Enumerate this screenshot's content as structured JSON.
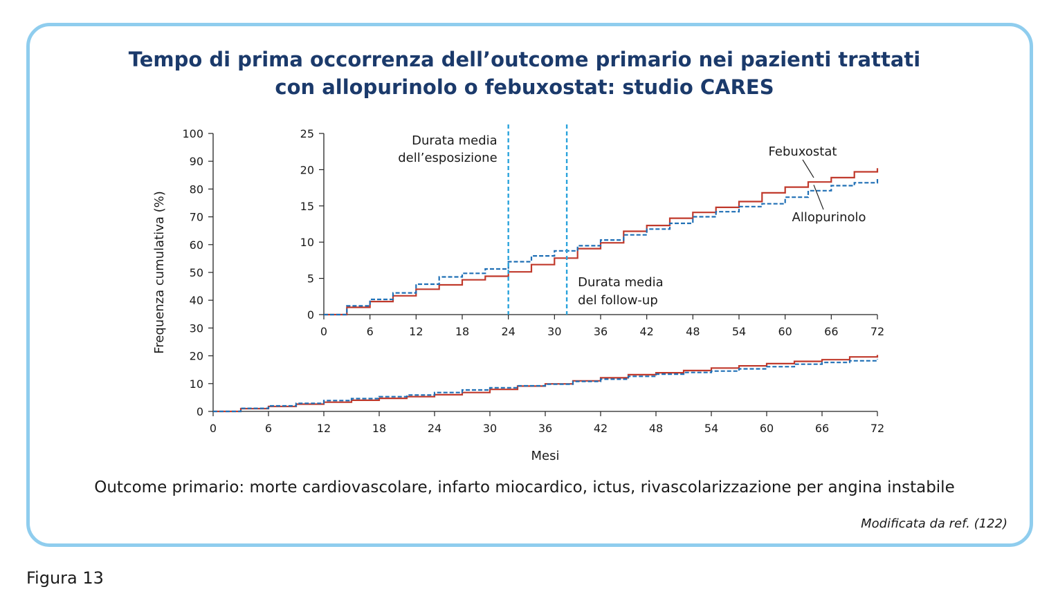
{
  "title_line1": "Tempo di prima occorrenza dell’outcome primario nei pazienti trattati",
  "title_line2": "con allopurinolo o febuxostat: studio CARES",
  "caption": "Outcome primario: morte cardiovascolare, infarto miocardico, ictus, rivascolarizzazione per angina instabile",
  "source_note": "Modificata da ref. (122)",
  "figure_label": "Figura 13",
  "colors": {
    "febuxostat": "#c0392b",
    "allopurinolo": "#1f6fb5",
    "vline": "#2aa3dc",
    "frame": "#8fcdee",
    "title": "#1b3a6b"
  },
  "chart_data": [
    {
      "type": "line",
      "panel": "main",
      "xlabel": "Mesi",
      "ylabel": "Frequenza cumulativa (%)",
      "xlim": [
        0,
        72
      ],
      "ylim": [
        0,
        100
      ],
      "xticks": [
        0,
        6,
        12,
        18,
        24,
        30,
        36,
        42,
        48,
        54,
        60,
        66,
        72
      ],
      "yticks": [
        0,
        10,
        20,
        30,
        40,
        50,
        60,
        70,
        80,
        90,
        100
      ],
      "series": [
        {
          "name": "Febuxostat",
          "style": "solid",
          "x": [
            0,
            3,
            6,
            9,
            12,
            15,
            18,
            21,
            24,
            27,
            30,
            33,
            36,
            39,
            42,
            45,
            48,
            51,
            54,
            57,
            60,
            63,
            66,
            69,
            72
          ],
          "y": [
            0,
            1.0,
            1.8,
            2.6,
            3.3,
            4.0,
            4.7,
            5.3,
            6.0,
            6.8,
            7.9,
            9.1,
            9.9,
            11.0,
            12.1,
            13.2,
            13.9,
            14.7,
            15.6,
            16.4,
            17.2,
            18.0,
            18.6,
            19.6,
            20.3
          ]
        },
        {
          "name": "Allopurinolo",
          "style": "dashed",
          "x": [
            0,
            3,
            6,
            9,
            12,
            15,
            18,
            21,
            24,
            27,
            30,
            33,
            36,
            39,
            42,
            45,
            48,
            51,
            54,
            57,
            60,
            63,
            66,
            69,
            72
          ],
          "y": [
            0,
            1.1,
            2.0,
            2.9,
            3.9,
            4.6,
            5.3,
            5.9,
            6.8,
            7.7,
            8.5,
            9.2,
            9.8,
            10.8,
            11.6,
            12.6,
            13.4,
            14.0,
            14.5,
            15.3,
            16.1,
            17.0,
            17.6,
            18.2,
            18.8
          ]
        }
      ]
    },
    {
      "type": "line",
      "panel": "inset",
      "xlim": [
        0,
        72
      ],
      "ylim": [
        0,
        25
      ],
      "xticks": [
        0,
        6,
        12,
        18,
        24,
        30,
        36,
        42,
        48,
        54,
        60,
        66,
        72
      ],
      "yticks": [
        0,
        5,
        10,
        15,
        20,
        25
      ],
      "series": [
        {
          "name": "Febuxostat",
          "style": "solid",
          "x": [
            0,
            3,
            6,
            9,
            12,
            15,
            18,
            21,
            24,
            27,
            30,
            33,
            36,
            39,
            42,
            45,
            48,
            51,
            54,
            57,
            60,
            63,
            66,
            69,
            72
          ],
          "y": [
            0,
            1.0,
            1.8,
            2.6,
            3.5,
            4.1,
            4.8,
            5.3,
            5.9,
            6.9,
            7.8,
            9.1,
            9.9,
            11.5,
            12.3,
            13.3,
            14.1,
            14.8,
            15.6,
            16.8,
            17.6,
            18.3,
            18.9,
            19.7,
            20.2
          ]
        },
        {
          "name": "Allopurinolo",
          "style": "dashed",
          "x": [
            0,
            3,
            6,
            9,
            12,
            15,
            18,
            21,
            24,
            27,
            30,
            33,
            36,
            39,
            42,
            45,
            48,
            51,
            54,
            57,
            60,
            63,
            66,
            69,
            72
          ],
          "y": [
            0,
            1.2,
            2.1,
            3.0,
            4.2,
            5.2,
            5.7,
            6.3,
            7.3,
            8.1,
            8.8,
            9.5,
            10.3,
            11.0,
            11.8,
            12.6,
            13.5,
            14.2,
            14.9,
            15.3,
            16.2,
            17.1,
            17.8,
            18.2,
            18.8
          ]
        }
      ],
      "vlines": [
        {
          "x": 24,
          "label_line1": "Durata media",
          "label_line2": "dell’esposizione"
        },
        {
          "x": 31.6,
          "label_line1": "Durata media",
          "label_line2": "del follow-up"
        }
      ],
      "labels": {
        "febuxostat": "Febuxostat",
        "allopurinolo": "Allopurinolo"
      }
    }
  ]
}
